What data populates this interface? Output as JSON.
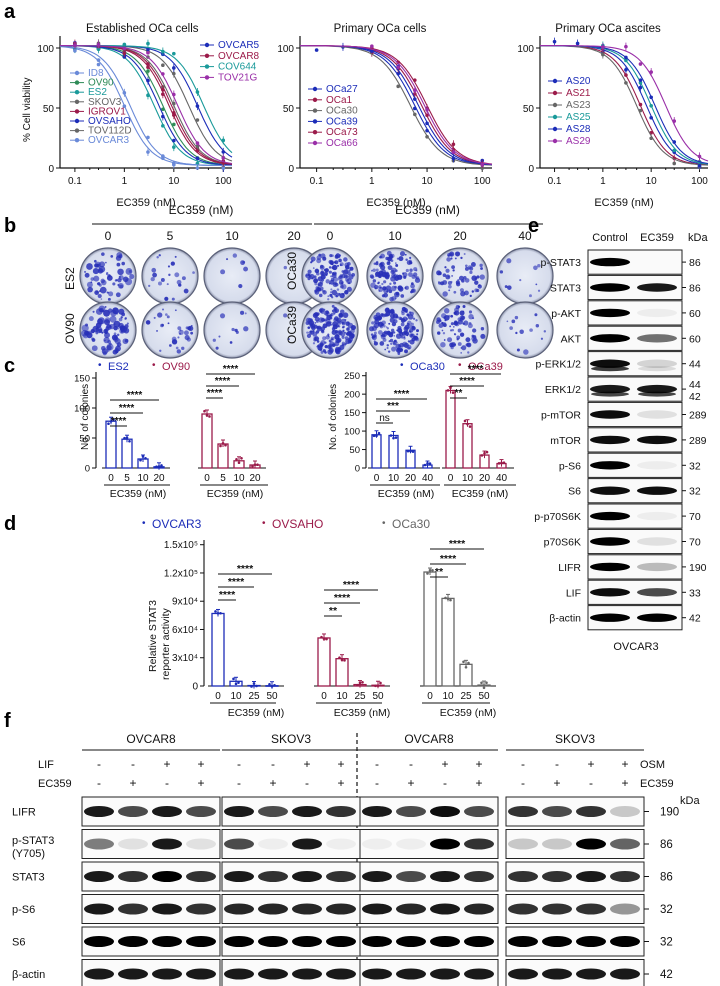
{
  "panel_labels": [
    "a",
    "b",
    "c",
    "d",
    "e",
    "f"
  ],
  "colors": {
    "blue": "#1c2db8",
    "maroon": "#9b1b4a",
    "gray": "#666666",
    "teal": "#1a9a9a",
    "purple": "#9a2fa8",
    "dark": "#222222",
    "lightblue": "#6a8ad8",
    "green": "#2e8b57"
  },
  "panel_a": {
    "ylabel": "% Cell viability",
    "xlabel": "EC359 (nM)",
    "xticks": [
      "0.1",
      "1",
      "10",
      "100"
    ],
    "yticks": [
      "0",
      "50",
      "100"
    ],
    "charts": [
      {
        "title": "Established OCa cells",
        "legend_left": [
          "ID8",
          "OV90",
          "ES2",
          "SKOV3",
          "IGROV1",
          "OVSAHO",
          "TOV112D",
          "OVCAR3"
        ],
        "legend_right": [
          "OVCAR5",
          "OVCAR8",
          "COV644",
          "TOV21G"
        ]
      },
      {
        "title": "Primary OCa cells",
        "legend": [
          "OCa27",
          "OCa1",
          "OCa30",
          "OCa39",
          "OCa73",
          "OCa66"
        ]
      },
      {
        "title": "Primary OCa ascites",
        "legend": [
          "AS20",
          "AS21",
          "AS23",
          "AS25",
          "AS28",
          "AS29"
        ]
      }
    ]
  },
  "chart_data": [
    {
      "type": "line",
      "title": "Established OCa cells",
      "xlabel": "EC359 (nM)",
      "ylabel": "% Cell viability",
      "xscale": "log",
      "xlim": [
        0.05,
        150
      ],
      "ylim": [
        0,
        110
      ],
      "series": [
        {
          "name": "ID8",
          "ic50": 1.0,
          "color": "#6a8ad8"
        },
        {
          "name": "OV90",
          "ic50": 6.0,
          "color": "#2e8b57"
        },
        {
          "name": "ES2",
          "ic50": 4.0,
          "color": "#1a9a9a"
        },
        {
          "name": "SKOV3",
          "ic50": 20,
          "color": "#666666"
        },
        {
          "name": "IGROV1",
          "ic50": 8,
          "color": "#9b1b4a"
        },
        {
          "name": "OVSAHO",
          "ic50": 5,
          "color": "#1c2db8"
        },
        {
          "name": "TOV112D",
          "ic50": 10,
          "color": "#666666"
        },
        {
          "name": "OVCAR3",
          "ic50": 1.3,
          "color": "#6a8ad8"
        },
        {
          "name": "OVCAR5",
          "ic50": 30,
          "color": "#1c2db8"
        },
        {
          "name": "OVCAR8",
          "ic50": 9,
          "color": "#9b1b4a"
        },
        {
          "name": "COV644",
          "ic50": 40,
          "color": "#1a9a9a"
        },
        {
          "name": "TOV21G",
          "ic50": 12,
          "color": "#9a2fa8"
        }
      ]
    },
    {
      "type": "line",
      "title": "Primary OCa cells",
      "xlabel": "EC359 (nM)",
      "ylabel": "",
      "xscale": "log",
      "xlim": [
        0.05,
        150
      ],
      "ylim": [
        0,
        110
      ],
      "series": [
        {
          "name": "OCa27",
          "ic50": 6,
          "color": "#1c2db8"
        },
        {
          "name": "OCa1",
          "ic50": 8,
          "color": "#9b1b4a"
        },
        {
          "name": "OCa30",
          "ic50": 5,
          "color": "#666666"
        },
        {
          "name": "OCa39",
          "ic50": 7,
          "color": "#1c2db8"
        },
        {
          "name": "OCa73",
          "ic50": 10,
          "color": "#9b1b4a"
        },
        {
          "name": "OCa66",
          "ic50": 9,
          "color": "#9a2fa8"
        }
      ]
    },
    {
      "type": "line",
      "title": "Primary OCa ascites",
      "xlabel": "EC359 (nM)",
      "ylabel": "",
      "xscale": "log",
      "xlim": [
        0.05,
        150
      ],
      "ylim": [
        0,
        110
      ],
      "series": [
        {
          "name": "AS20",
          "ic50": 8,
          "color": "#1c2db8"
        },
        {
          "name": "AS21",
          "ic50": 6,
          "color": "#9b1b4a"
        },
        {
          "name": "AS23",
          "ic50": 5,
          "color": "#666666"
        },
        {
          "name": "AS25",
          "ic50": 10,
          "color": "#1a9a9a"
        },
        {
          "name": "AS28",
          "ic50": 12,
          "color": "#1c2db8"
        },
        {
          "name": "AS29",
          "ic50": 20,
          "color": "#9a2fa8"
        }
      ]
    },
    {
      "type": "bar",
      "title": "",
      "xlabel": "EC359 (nM)",
      "ylabel": "No. of colonies",
      "categories": [
        "0",
        "5",
        "10",
        "20"
      ],
      "yticks": [
        "0",
        "50",
        "100",
        "150"
      ],
      "series": [
        {
          "name": "ES2",
          "values": [
            78,
            48,
            15,
            2
          ]
        },
        {
          "name": "OV90",
          "values": [
            90,
            40,
            12,
            5
          ]
        }
      ]
    },
    {
      "type": "bar",
      "title": "",
      "xlabel": "EC359 (nM)",
      "ylabel": "No. of colonies",
      "categories": [
        "0",
        "10",
        "20",
        "40"
      ],
      "yticks": [
        "0",
        "50",
        "100",
        "150",
        "200",
        "250"
      ],
      "series": [
        {
          "name": "OCa30",
          "values": [
            90,
            88,
            48,
            8
          ]
        },
        {
          "name": "OCa39",
          "values": [
            210,
            120,
            35,
            12
          ]
        }
      ]
    },
    {
      "type": "bar",
      "title": "",
      "xlabel": "EC359 (nM)",
      "ylabel": "Relative STAT3 reporter activity",
      "categories": [
        "0",
        "10",
        "25",
        "50"
      ],
      "yticks": [
        "0",
        "3x10⁴",
        "6x10⁴",
        "9x10⁴",
        "1.2x10⁵",
        "1.5x10⁵"
      ],
      "series": [
        {
          "name": "OVCAR3",
          "values": [
            77000,
            5000,
            500,
            300
          ]
        },
        {
          "name": "OVSAHO",
          "values": [
            51000,
            29000,
            1500,
            800
          ]
        },
        {
          "name": "OCa30",
          "values": [
            121000,
            93000,
            23000,
            1000
          ]
        }
      ]
    }
  ],
  "panel_b": {
    "left": {
      "header": "EC359 (nM)",
      "doses": [
        "0",
        "5",
        "10",
        "20"
      ],
      "rows": [
        "ES2",
        "OV90"
      ]
    },
    "right": {
      "header": "EC359 (nM)",
      "doses": [
        "0",
        "10",
        "20",
        "40"
      ],
      "rows": [
        "OCa30",
        "OCa39"
      ]
    }
  },
  "panel_c": {
    "left_legend": [
      "ES2",
      "OV90"
    ],
    "right_legend": [
      "OCa30",
      "OCa39"
    ],
    "ylabel": "No. of colonies",
    "xlabel": "EC359 (nM)",
    "left_ticks": [
      "0",
      "5",
      "10",
      "20"
    ],
    "right_ticks": [
      "0",
      "10",
      "20",
      "40"
    ],
    "left_yticks": [
      "0",
      "50",
      "100",
      "150"
    ],
    "right_yticks": [
      "0",
      "50",
      "100",
      "150",
      "200",
      "250"
    ],
    "sig": [
      "****",
      "****",
      "****",
      "****",
      "****",
      "****"
    ],
    "sig_right": [
      "ns",
      "***",
      "****",
      "**",
      "****",
      "****"
    ]
  },
  "panel_d": {
    "legend": [
      "OVCAR3",
      "OVSAHO",
      "OCa30"
    ],
    "ylabel1": "Relative STAT3",
    "ylabel2": "reporter activity",
    "xlabel": "EC359 (nM)",
    "ticks": [
      "0",
      "10",
      "25",
      "50"
    ],
    "yticks": [
      "0",
      "3x10⁴",
      "6x10⁴",
      "9x10⁴",
      "1.2x10⁵",
      "1.5x10⁵"
    ],
    "sig": [
      "****",
      "****",
      "****",
      "**",
      "****",
      "****",
      "**",
      "****",
      "****"
    ]
  },
  "panel_e": {
    "cols": [
      "Control",
      "EC359"
    ],
    "kda": "kDa",
    "rows": [
      {
        "label": "p-STAT3",
        "mw": "86"
      },
      {
        "label": "STAT3",
        "mw": "86"
      },
      {
        "label": "p-AKT",
        "mw": "60"
      },
      {
        "label": "AKT",
        "mw": "60"
      },
      {
        "label": "p-ERK1/2",
        "mw": "44"
      },
      {
        "label": "ERK1/2",
        "mw": "44",
        "mw2": "42"
      },
      {
        "label": "p-mTOR",
        "mw": "289"
      },
      {
        "label": "mTOR",
        "mw": "289"
      },
      {
        "label": "p-S6",
        "mw": "32"
      },
      {
        "label": "S6",
        "mw": "32"
      },
      {
        "label": "p-p70S6K",
        "mw": "70"
      },
      {
        "label": "p70S6K",
        "mw": "70"
      },
      {
        "label": "LIFR",
        "mw": "190"
      },
      {
        "label": "LIF",
        "mw": "33"
      },
      {
        "label": "β-actin",
        "mw": "42"
      }
    ],
    "cell_line": "OVCAR3"
  },
  "panel_f": {
    "groups": [
      "OVCAR8",
      "SKOV3",
      "OVCAR8",
      "SKOV3"
    ],
    "treat_left": "LIF",
    "treat_right": "OSM",
    "drug": "EC359",
    "kda": "kDa",
    "lif_row": [
      "-",
      "-",
      "+",
      "+"
    ],
    "ec_row": [
      "-",
      "+",
      "-",
      "+"
    ],
    "rows": [
      {
        "label": "LIFR",
        "mw": "190"
      },
      {
        "label": "p-STAT3",
        "label2": "(Y705)",
        "mw": "86"
      },
      {
        "label": "STAT3",
        "mw": "86"
      },
      {
        "label": "p-S6",
        "mw": "32"
      },
      {
        "label": "S6",
        "mw": "32"
      },
      {
        "label": "β-actin",
        "mw": "42"
      }
    ]
  }
}
